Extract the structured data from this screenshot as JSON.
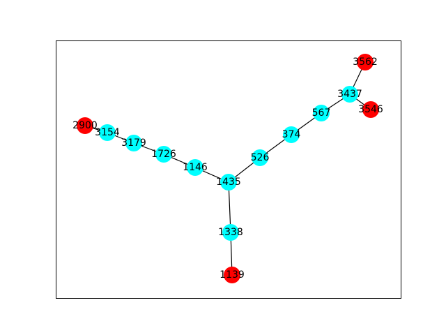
{
  "graph": {
    "colors": {
      "default_node": "#00ffff",
      "highlight_node": "#ff0000",
      "edge": "#000000",
      "frame": "#000000"
    },
    "nodes": [
      {
        "id": "3562",
        "label": "3562",
        "group": "highlight"
      },
      {
        "id": "3437",
        "label": "3437",
        "group": "default"
      },
      {
        "id": "3546",
        "label": "3546",
        "group": "highlight"
      },
      {
        "id": "567",
        "label": "567",
        "group": "default"
      },
      {
        "id": "374",
        "label": "374",
        "group": "default"
      },
      {
        "id": "526",
        "label": "526",
        "group": "default"
      },
      {
        "id": "1435",
        "label": "1435",
        "group": "default"
      },
      {
        "id": "1146",
        "label": "1146",
        "group": "default"
      },
      {
        "id": "1726",
        "label": "1726",
        "group": "default"
      },
      {
        "id": "3179",
        "label": "3179",
        "group": "default"
      },
      {
        "id": "3154",
        "label": "3154",
        "group": "default"
      },
      {
        "id": "2900",
        "label": "2900",
        "group": "highlight"
      },
      {
        "id": "1338",
        "label": "1338",
        "group": "default"
      },
      {
        "id": "1139",
        "label": "1139",
        "group": "highlight"
      }
    ],
    "edges": [
      [
        "3562",
        "3437"
      ],
      [
        "3437",
        "3546"
      ],
      [
        "3437",
        "567"
      ],
      [
        "567",
        "374"
      ],
      [
        "374",
        "526"
      ],
      [
        "526",
        "1435"
      ],
      [
        "1435",
        "1146"
      ],
      [
        "1146",
        "1726"
      ],
      [
        "1726",
        "3179"
      ],
      [
        "3179",
        "3154"
      ],
      [
        "3154",
        "2900"
      ],
      [
        "1435",
        "1338"
      ],
      [
        "1338",
        "1139"
      ]
    ]
  }
}
